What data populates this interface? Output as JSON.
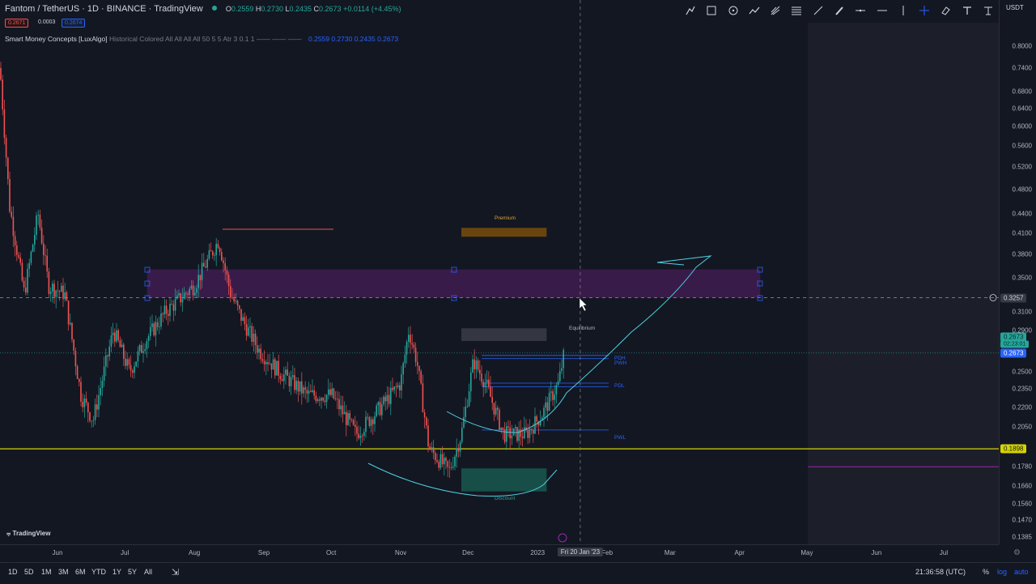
{
  "header": {
    "symbol": "Fantom / TetherUS · 1D · BINANCE · TradingView",
    "ohlc": {
      "o_label": "O",
      "o": "0.2559",
      "h_label": "H",
      "h": "0.2730",
      "l_label": "L",
      "l": "0.2435",
      "c_label": "C",
      "c": "0.2673",
      "change": "+0.0114 (+4.45%)"
    },
    "sell_price": "0.2671",
    "spread": "0.0003",
    "buy_price": "0.2674"
  },
  "indicator": {
    "name": "Smart Money Concepts [LuxAlgo]",
    "params": "Historical Colored All All All All 50 5 5 Atr 3 0.1 1 —— —— ——",
    "values": "0.2559 0.2730 0.2435 0.2673"
  },
  "toolbar": {
    "currency": "USDT",
    "icons": [
      "trend-line-icon",
      "rectangle-icon",
      "circle-icon",
      "path-icon",
      "pitchfork-icon",
      "fib-icon",
      "ray-icon",
      "brush-icon",
      "horizontal-line-icon",
      "vertical-line-icon",
      "crosshair-icon",
      "eraser-icon",
      "text-icon",
      "pin-icon"
    ]
  },
  "price_scale": {
    "ticks": [
      {
        "v": "0.8000",
        "p": 0.8
      },
      {
        "v": "0.7400",
        "p": 0.74
      },
      {
        "v": "0.6800",
        "p": 0.68
      },
      {
        "v": "0.6400",
        "p": 0.64
      },
      {
        "v": "0.6000",
        "p": 0.6
      },
      {
        "v": "0.5600",
        "p": 0.56
      },
      {
        "v": "0.5200",
        "p": 0.52
      },
      {
        "v": "0.4800",
        "p": 0.48
      },
      {
        "v": "0.4400",
        "p": 0.44
      },
      {
        "v": "0.4100",
        "p": 0.41
      },
      {
        "v": "0.3800",
        "p": 0.38
      },
      {
        "v": "0.3500",
        "p": 0.35
      },
      {
        "v": "0.3100",
        "p": 0.31
      },
      {
        "v": "0.2900",
        "p": 0.29
      },
      {
        "v": "0.2500",
        "p": 0.25
      },
      {
        "v": "0.2350",
        "p": 0.235
      },
      {
        "v": "0.2200",
        "p": 0.22
      },
      {
        "v": "0.2050",
        "p": 0.205
      },
      {
        "v": "0.1780",
        "p": 0.178
      },
      {
        "v": "0.1660",
        "p": 0.166
      },
      {
        "v": "0.1560",
        "p": 0.156
      },
      {
        "v": "0.1470",
        "p": 0.147
      },
      {
        "v": "0.1385",
        "p": 0.1385
      }
    ],
    "crosshair_price": "0.3257",
    "last_price": "0.2673",
    "countdown": "02:23:01",
    "last_price_top": "0.2673",
    "hline_price": "0.1898"
  },
  "time_scale": {
    "ticks": [
      {
        "t": "Jun",
        "d": "2022-06-01"
      },
      {
        "t": "Jul",
        "d": "2022-07-01"
      },
      {
        "t": "Aug",
        "d": "2022-08-01"
      },
      {
        "t": "Sep",
        "d": "2022-09-01"
      },
      {
        "t": "Oct",
        "d": "2022-10-01"
      },
      {
        "t": "Nov",
        "d": "2022-11-01"
      },
      {
        "t": "Dec",
        "d": "2022-12-01"
      },
      {
        "t": "2023",
        "d": "2023-01-01"
      },
      {
        "t": "Feb",
        "d": "2023-02-01"
      },
      {
        "t": "Mar",
        "d": "2023-03-01"
      },
      {
        "t": "Apr",
        "d": "2023-04-01"
      },
      {
        "t": "May",
        "d": "2023-05-01"
      },
      {
        "t": "Jun",
        "d": "2023-06-01"
      },
      {
        "t": "Jul",
        "d": "2023-07-01"
      }
    ],
    "crosshair_date": "Fri 20 Jan '23"
  },
  "zones": {
    "premium": "Premium",
    "equilibrium": "Equilibrium",
    "discount": "Discount",
    "pwh": "PWH",
    "pdh": "PDH",
    "pdl": "PDL",
    "pwl": "PWL"
  },
  "bottom": {
    "timeframes": [
      "1D",
      "5D",
      "1M",
      "3M",
      "6M",
      "YTD",
      "1Y",
      "5Y",
      "All"
    ],
    "clock": "21:36:58 (UTC)",
    "pct": "%",
    "log": "log",
    "auto": "auto"
  },
  "logo": "TradingView",
  "colors": {
    "bg": "#131722",
    "up": "#26a69a",
    "down": "#ef5350",
    "ob": "#9c27b0",
    "hline": "#d4d400",
    "curve": "#4dd0e1",
    "accent": "#2962ff"
  }
}
